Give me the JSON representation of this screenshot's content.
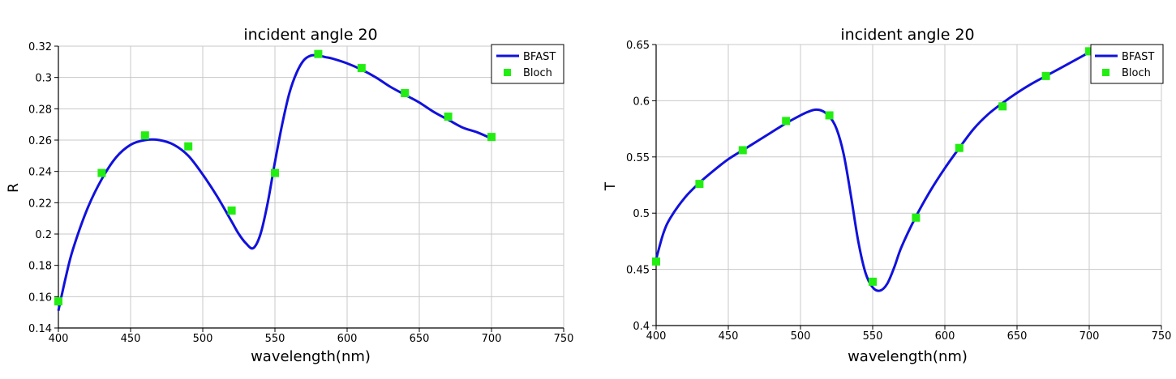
{
  "chart_data": [
    {
      "type": "line",
      "title": "incident angle 20",
      "xlabel": "wavelength(nm)",
      "ylabel": "R",
      "xlim": [
        400,
        750
      ],
      "ylim": [
        0.14,
        0.32
      ],
      "xticks": [
        400,
        450,
        500,
        550,
        600,
        650,
        700,
        750
      ],
      "yticks": [
        0.14,
        0.16,
        0.18,
        0.2,
        0.22,
        0.24,
        0.26,
        0.28,
        0.3,
        0.32
      ],
      "ytick_labels": [
        "0.14",
        "0.16",
        "0.18",
        "0.2",
        "0.22",
        "0.24",
        "0.26",
        "0.28",
        "0.3",
        "0.32"
      ],
      "grid": true,
      "legend_position": "top-right",
      "series": [
        {
          "name": "BFAST",
          "style": "line",
          "color": "#1111dd",
          "x": [
            400,
            405,
            410,
            420,
            430,
            440,
            450,
            460,
            470,
            480,
            490,
            500,
            510,
            520,
            525,
            530,
            535,
            540,
            545,
            550,
            555,
            560,
            565,
            570,
            575,
            580,
            585,
            590,
            600,
            610,
            620,
            630,
            640,
            650,
            660,
            670,
            680,
            690,
            700
          ],
          "y": [
            0.151,
            0.172,
            0.19,
            0.216,
            0.235,
            0.249,
            0.257,
            0.26,
            0.26,
            0.257,
            0.25,
            0.238,
            0.224,
            0.208,
            0.2,
            0.194,
            0.191,
            0.2,
            0.22,
            0.246,
            0.27,
            0.29,
            0.303,
            0.311,
            0.314,
            0.314,
            0.313,
            0.312,
            0.309,
            0.305,
            0.3,
            0.294,
            0.289,
            0.284,
            0.278,
            0.273,
            0.268,
            0.265,
            0.261
          ]
        },
        {
          "name": "Bloch",
          "style": "markers",
          "color": "#22ee11",
          "x": [
            400,
            430,
            460,
            490,
            520,
            550,
            580,
            610,
            640,
            670,
            700
          ],
          "y": [
            0.157,
            0.239,
            0.263,
            0.256,
            0.215,
            0.239,
            0.315,
            0.306,
            0.29,
            0.275,
            0.262
          ]
        }
      ]
    },
    {
      "type": "line",
      "title": "incident angle 20",
      "xlabel": "wavelength(nm)",
      "ylabel": "T",
      "xlim": [
        400,
        750
      ],
      "ylim": [
        0.4,
        0.65
      ],
      "xticks": [
        400,
        450,
        500,
        550,
        600,
        650,
        700,
        750
      ],
      "yticks": [
        0.4,
        0.45,
        0.5,
        0.55,
        0.6,
        0.65
      ],
      "ytick_labels": [
        "0.4",
        "0.45",
        "0.5",
        "0.55",
        "0.6",
        "0.65"
      ],
      "grid": true,
      "legend_position": "top-right",
      "series": [
        {
          "name": "BFAST",
          "style": "line",
          "color": "#1111dd",
          "x": [
            400,
            405,
            410,
            420,
            430,
            440,
            450,
            460,
            470,
            480,
            490,
            500,
            505,
            510,
            515,
            520,
            525,
            530,
            535,
            540,
            545,
            550,
            555,
            560,
            565,
            570,
            580,
            590,
            600,
            610,
            620,
            630,
            640,
            650,
            660,
            670,
            680,
            690,
            700
          ],
          "y": [
            0.459,
            0.482,
            0.496,
            0.514,
            0.527,
            0.538,
            0.548,
            0.556,
            0.564,
            0.572,
            0.58,
            0.587,
            0.59,
            0.592,
            0.591,
            0.586,
            0.575,
            0.552,
            0.515,
            0.475,
            0.447,
            0.434,
            0.431,
            0.437,
            0.452,
            0.47,
            0.497,
            0.52,
            0.54,
            0.558,
            0.575,
            0.588,
            0.598,
            0.607,
            0.615,
            0.622,
            0.629,
            0.636,
            0.643
          ]
        },
        {
          "name": "Bloch",
          "style": "markers",
          "color": "#22ee11",
          "x": [
            400,
            430,
            460,
            490,
            520,
            550,
            580,
            610,
            640,
            670,
            700
          ],
          "y": [
            0.457,
            0.526,
            0.556,
            0.582,
            0.587,
            0.439,
            0.496,
            0.558,
            0.595,
            0.622,
            0.644
          ]
        }
      ]
    }
  ]
}
